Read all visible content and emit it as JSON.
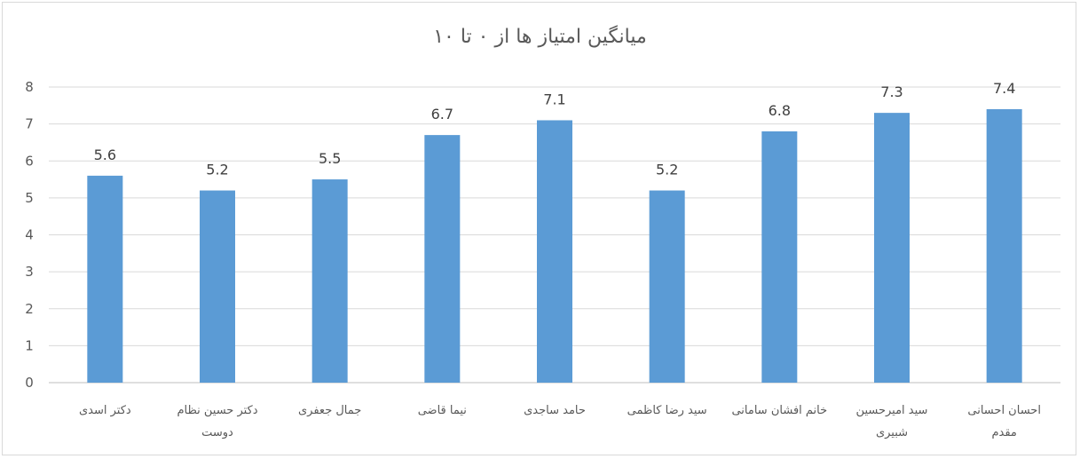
{
  "chart_data": {
    "type": "bar",
    "title": "میانگین امتیاز ها از ۰ تا ۱۰",
    "xlabel": "",
    "ylabel": "",
    "ylim": [
      0,
      8
    ],
    "yticks": [
      0,
      1,
      2,
      3,
      4,
      5,
      6,
      7,
      8
    ],
    "grid": true,
    "legend": "none",
    "bar_color": "#5b9bd5",
    "categories": [
      [
        "دکتر اسدی"
      ],
      [
        "دکتر حسین نظام",
        "دوست"
      ],
      [
        "جمال جعفری"
      ],
      [
        "نیما قاضی"
      ],
      [
        "حامد ساجدی"
      ],
      [
        "سید رضا کاظمی"
      ],
      [
        "خانم افشان سامانی"
      ],
      [
        "سید امیرحسین",
        "شبیری"
      ],
      [
        "احسان احسانی",
        "مقدم"
      ]
    ],
    "values": [
      5.6,
      5.2,
      5.5,
      6.7,
      7.1,
      5.2,
      6.8,
      7.3,
      7.4
    ],
    "data_labels": [
      "5.6",
      "5.2",
      "5.5",
      "6.7",
      "7.1",
      "5.2",
      "6.8",
      "7.3",
      "7.4"
    ]
  }
}
